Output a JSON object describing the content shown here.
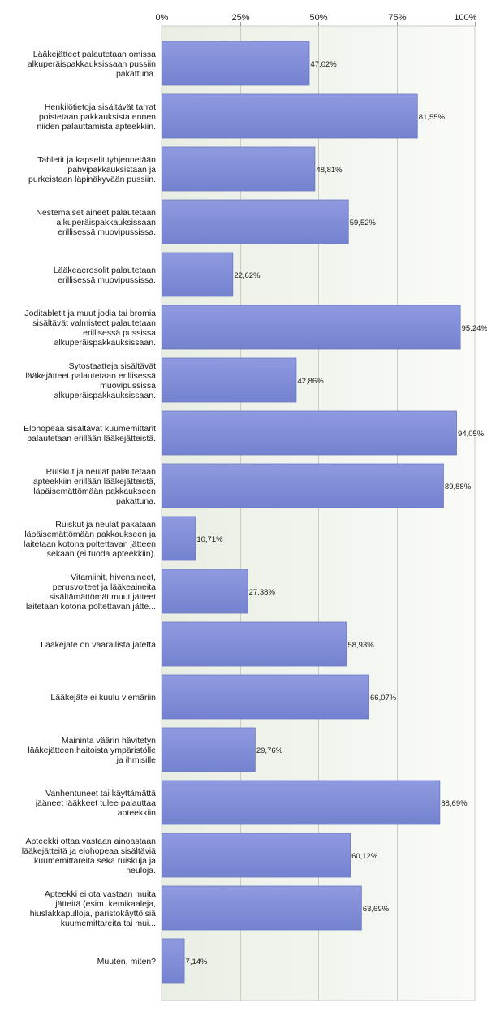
{
  "chart_data": {
    "type": "bar",
    "orientation": "horizontal",
    "xlim": [
      0,
      100
    ],
    "ticks": [
      0,
      25,
      50,
      75,
      100
    ],
    "tick_labels": [
      "0%",
      "25%",
      "50%",
      "75%",
      "100%"
    ],
    "grid": true,
    "colors": {
      "bar": "#7f8bd6",
      "bar_edge": "#6b78c4",
      "plot_bg": "#f4f6f0",
      "grid": "#c9ccc4",
      "text": "#1a1a1a"
    },
    "categories": [
      [
        "Lääkejätteet palautetaan omissa",
        "alkuperäispakkauksissaan pussiin",
        "pakattuna."
      ],
      [
        "Henkilötietoja sisältävät tarrat",
        "poistetaan pakkauksista ennen",
        "niiden palauttamista apteekkiin."
      ],
      [
        "Tabletit ja kapselit tyhjennetään",
        "pahvipakkauksistaan ja",
        "purkeistaan läpinäkyvään pussiin."
      ],
      [
        "Nestemäiset aineet palautetaan",
        "alkuperäispakkauksissaan",
        "erillisessä muovipussissa."
      ],
      [
        "Lääkeaerosolit palautetaan",
        "erillisessä muovipussissa."
      ],
      [
        "Joditabletit ja muut jodia tai bromia",
        "sisältävät valmisteet palautetaan",
        "erillisessä pussissa",
        "alkuperäispakkauksissaan."
      ],
      [
        "Sytostaatteja sisältävät",
        "lääkejätteet palautetaan erillisessä",
        "muovipussissa",
        "alkuperäispakkauksissaan."
      ],
      [
        "Elohopeaa sisältävät kuumemittarit",
        "palautetaan erillään lääkejätteistä."
      ],
      [
        "Ruiskut ja neulat palautetaan",
        "apteekkiin erillään lääkejätteistä,",
        "läpäisemättömään pakkaukseen",
        "pakattuna."
      ],
      [
        "Ruiskut ja neulat pakataan",
        "läpäisemättömään pakkaukseen ja",
        "laitetaan kotona poltettavan jätteen",
        "sekaan (ei tuoda apteekkiin)."
      ],
      [
        "Vitamiinit, hivenaineet,",
        "perusvoiteet ja lääkeaineita",
        "sisältämättömät muut jätteet",
        "laitetaan kotona poltettavan jätte..."
      ],
      [
        "Lääkejäte on vaarallista jätettä"
      ],
      [
        "Lääkejäte ei kuulu viemäriin"
      ],
      [
        "Maininta väärin hävitetyn",
        "lääkejätteen haitoista ympäristölle",
        "ja ihmisille"
      ],
      [
        "Vanhentuneet tai käyttämättä",
        "jääneet lääkkeet tulee palauttaa",
        "apteekkiin"
      ],
      [
        "Apteekki ottaa vastaan ainoastaan",
        "lääkejätteitä ja elohopeaa sisältäviä",
        "kuumemittareita sekä ruiskuja ja",
        "neuloja."
      ],
      [
        "Apteekki ei ota vastaan muita",
        "jätteitä (esim. kemikaaleja,",
        "hiuslakkapulloja, paristokäyttöisiä",
        "kuumemittareita tai mui..."
      ],
      [
        "Muuten, miten?"
      ]
    ],
    "values": [
      47.02,
      81.55,
      48.81,
      59.52,
      22.62,
      95.24,
      42.86,
      94.05,
      89.88,
      10.71,
      27.38,
      58.93,
      66.07,
      29.76,
      88.69,
      60.12,
      63.69,
      7.14
    ],
    "value_labels": [
      "47,02%",
      "81,55%",
      "48,81%",
      "59,52%",
      "22,62%",
      "95,24%",
      "42,86%",
      "94,05%",
      "89,88%",
      "10,71%",
      "27,38%",
      "58,93%",
      "66,07%",
      "29,76%",
      "88,69%",
      "60,12%",
      "63,69%",
      "7,14%"
    ]
  }
}
